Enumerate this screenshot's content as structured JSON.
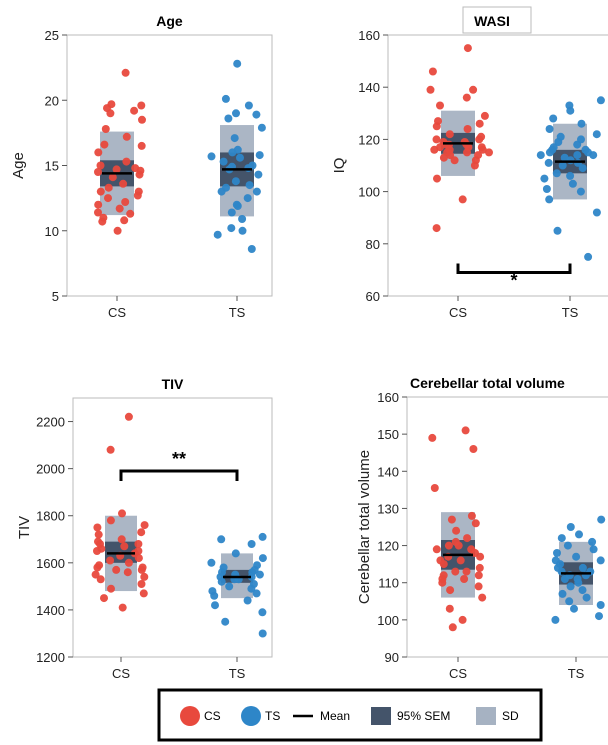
{
  "colors": {
    "cs": "#E8493D",
    "ts": "#2E86C8",
    "sd": "#A6B2C2",
    "sem": "#44546A",
    "mean": "#000000",
    "axis": "#BBBBBB"
  },
  "legend": {
    "cs": "CS",
    "ts": "TS",
    "mean": "Mean",
    "sem": "95% SEM",
    "sd": "SD"
  },
  "chart_data": [
    {
      "type": "scatter",
      "title": "Age",
      "ylabel": "Age",
      "ylim": [
        5,
        25
      ],
      "yticks": [
        5,
        10,
        15,
        20,
        25
      ],
      "categories": [
        "CS",
        "TS"
      ],
      "series": [
        {
          "name": "CS",
          "mean": 14.4,
          "sem": [
            13.4,
            15.4
          ],
          "sd": [
            11.2,
            17.6
          ],
          "values": [
            22.1,
            19.7,
            19.6,
            19.4,
            19.2,
            19.0,
            18.5,
            17.8,
            17.2,
            16.6,
            16.5,
            16.0,
            15.3,
            15.0,
            14.8,
            14.7,
            14.6,
            14.5,
            14.3,
            14.1,
            13.6,
            13.3,
            13.0,
            13.0,
            12.7,
            12.5,
            12.2,
            12.0,
            11.7,
            11.4,
            11.3,
            11.0,
            10.8,
            10.7,
            10.0
          ]
        },
        {
          "name": "TS",
          "mean": 14.7,
          "sem": [
            13.4,
            16.0
          ],
          "sd": [
            11.1,
            18.1
          ],
          "values": [
            22.8,
            20.1,
            19.6,
            19.0,
            18.9,
            18.6,
            17.9,
            17.1,
            16.2,
            16.0,
            15.8,
            15.7,
            15.6,
            15.3,
            15.0,
            14.9,
            14.8,
            14.7,
            14.3,
            13.8,
            13.5,
            13.3,
            13.0,
            13.0,
            12.5,
            12.0,
            11.9,
            11.4,
            10.9,
            10.2,
            10.0,
            9.7,
            8.6
          ]
        }
      ]
    },
    {
      "type": "scatter",
      "title": "WASI",
      "ylabel": "IQ",
      "ylim": [
        60,
        160
      ],
      "yticks": [
        60,
        80,
        100,
        120,
        140,
        160
      ],
      "categories": [
        "CS",
        "TS"
      ],
      "series": [
        {
          "name": "CS",
          "mean": 118.5,
          "sem": [
            114.5,
            122.5
          ],
          "sd": [
            106,
            131
          ],
          "values": [
            155,
            146,
            139,
            139,
            136,
            133,
            129,
            127,
            126,
            125,
            124,
            122,
            121,
            120,
            120,
            119,
            119,
            118,
            118,
            118,
            117,
            117,
            117,
            116,
            116,
            116,
            115,
            115,
            115,
            114,
            114,
            113,
            112,
            112,
            110,
            105,
            97,
            86
          ]
        },
        {
          "name": "TS",
          "mean": 111.5,
          "sem": [
            107,
            116
          ],
          "sd": [
            97,
            126
          ],
          "values": [
            135,
            133,
            131,
            128,
            126,
            124,
            122,
            121,
            120,
            119,
            118,
            117,
            116,
            116,
            115,
            115,
            114,
            114,
            114,
            113,
            112,
            111,
            111,
            110,
            109,
            107,
            106,
            105,
            103,
            101,
            100,
            97,
            92,
            85,
            75
          ]
        }
      ],
      "significance": {
        "pair": [
          "CS",
          "TS"
        ],
        "label": "*",
        "y": 69
      }
    },
    {
      "type": "scatter",
      "title": "TIV",
      "ylabel": "TIV",
      "ylim": [
        1200,
        2300
      ],
      "yticks": [
        1200,
        1400,
        1600,
        1800,
        2000,
        2200
      ],
      "categories": [
        "CS",
        "TS"
      ],
      "series": [
        {
          "name": "CS",
          "mean": 1640,
          "sem": [
            1600,
            1690
          ],
          "sd": [
            1480,
            1800
          ],
          "values": [
            2220,
            2080,
            1810,
            1780,
            1760,
            1750,
            1730,
            1720,
            1700,
            1690,
            1680,
            1680,
            1670,
            1660,
            1650,
            1650,
            1640,
            1630,
            1620,
            1610,
            1600,
            1590,
            1580,
            1580,
            1570,
            1570,
            1560,
            1550,
            1540,
            1530,
            1510,
            1490,
            1470,
            1450,
            1410
          ]
        },
        {
          "name": "TS",
          "mean": 1540,
          "sem": [
            1515,
            1570
          ],
          "sd": [
            1450,
            1640
          ],
          "values": [
            1710,
            1700,
            1680,
            1640,
            1620,
            1600,
            1590,
            1580,
            1570,
            1560,
            1560,
            1550,
            1550,
            1540,
            1540,
            1530,
            1530,
            1520,
            1510,
            1500,
            1490,
            1480,
            1470,
            1460,
            1440,
            1420,
            1390,
            1350,
            1300
          ]
        }
      ],
      "significance": {
        "pair": [
          "CS",
          "TS"
        ],
        "label": "**",
        "y": 1990
      }
    },
    {
      "type": "scatter",
      "title": "Cerebellar total volume",
      "ylabel": "Cerebellar total volume",
      "ylim": [
        90,
        160
      ],
      "yticks": [
        90,
        100,
        110,
        120,
        130,
        140,
        150,
        160
      ],
      "categories": [
        "CS",
        "TS"
      ],
      "series": [
        {
          "name": "CS",
          "mean": 117.5,
          "sem": [
            113.5,
            121.5
          ],
          "sd": [
            106,
            129
          ],
          "values": [
            151,
            149,
            146,
            135.5,
            128,
            127,
            126,
            124,
            122,
            121,
            120,
            120,
            119,
            119,
            118,
            117,
            117,
            116,
            116,
            115,
            114,
            113,
            113,
            112,
            112,
            111,
            111,
            110,
            109,
            108,
            106,
            103,
            100,
            98
          ]
        },
        {
          "name": "TS",
          "mean": 112.5,
          "sem": [
            109.5,
            115.5
          ],
          "sd": [
            104,
            121
          ],
          "values": [
            127,
            125,
            123,
            122,
            121,
            120,
            119,
            118,
            117,
            116,
            116,
            115,
            114,
            114,
            113,
            113,
            112,
            112,
            111,
            111,
            110,
            109,
            108,
            107,
            106,
            105,
            104,
            103,
            101,
            100
          ]
        }
      ]
    }
  ]
}
